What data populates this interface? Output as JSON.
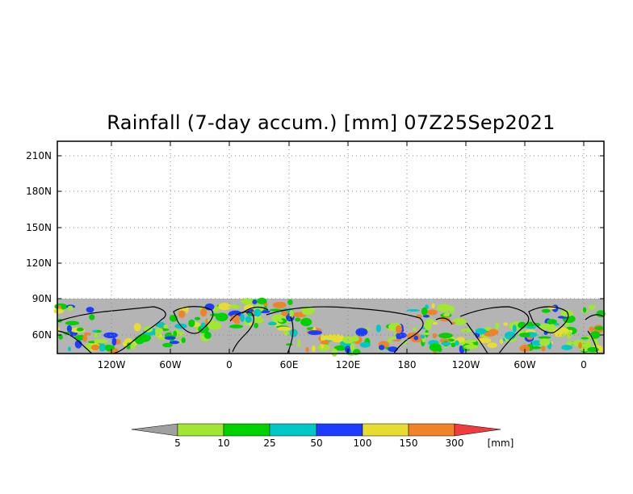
{
  "title": "Rainfall (7-day accum.) [mm] 07Z25Sep2021",
  "y_ticks": [
    "210N",
    "180N",
    "150N",
    "120N",
    "90N",
    "60N"
  ],
  "x_ticks": [
    "120W",
    "60W",
    "0",
    "60E",
    "120E",
    "180",
    "120W",
    "60W",
    "0"
  ],
  "legend": {
    "unit": "[mm]",
    "breaks": [
      "5",
      "10",
      "25",
      "50",
      "100",
      "150",
      "300"
    ],
    "colors": {
      "below": "#a0a0a0",
      "c1": "#a0e632",
      "c2": "#00d200",
      "c3": "#00c8c8",
      "c4": "#1e3cff",
      "c5": "#e6dc32",
      "c6": "#f08228",
      "above": "#f03c3c"
    }
  },
  "colors": {
    "no_data": "#b4b4b4",
    "coast": "#000000",
    "grid": "#888888"
  }
}
